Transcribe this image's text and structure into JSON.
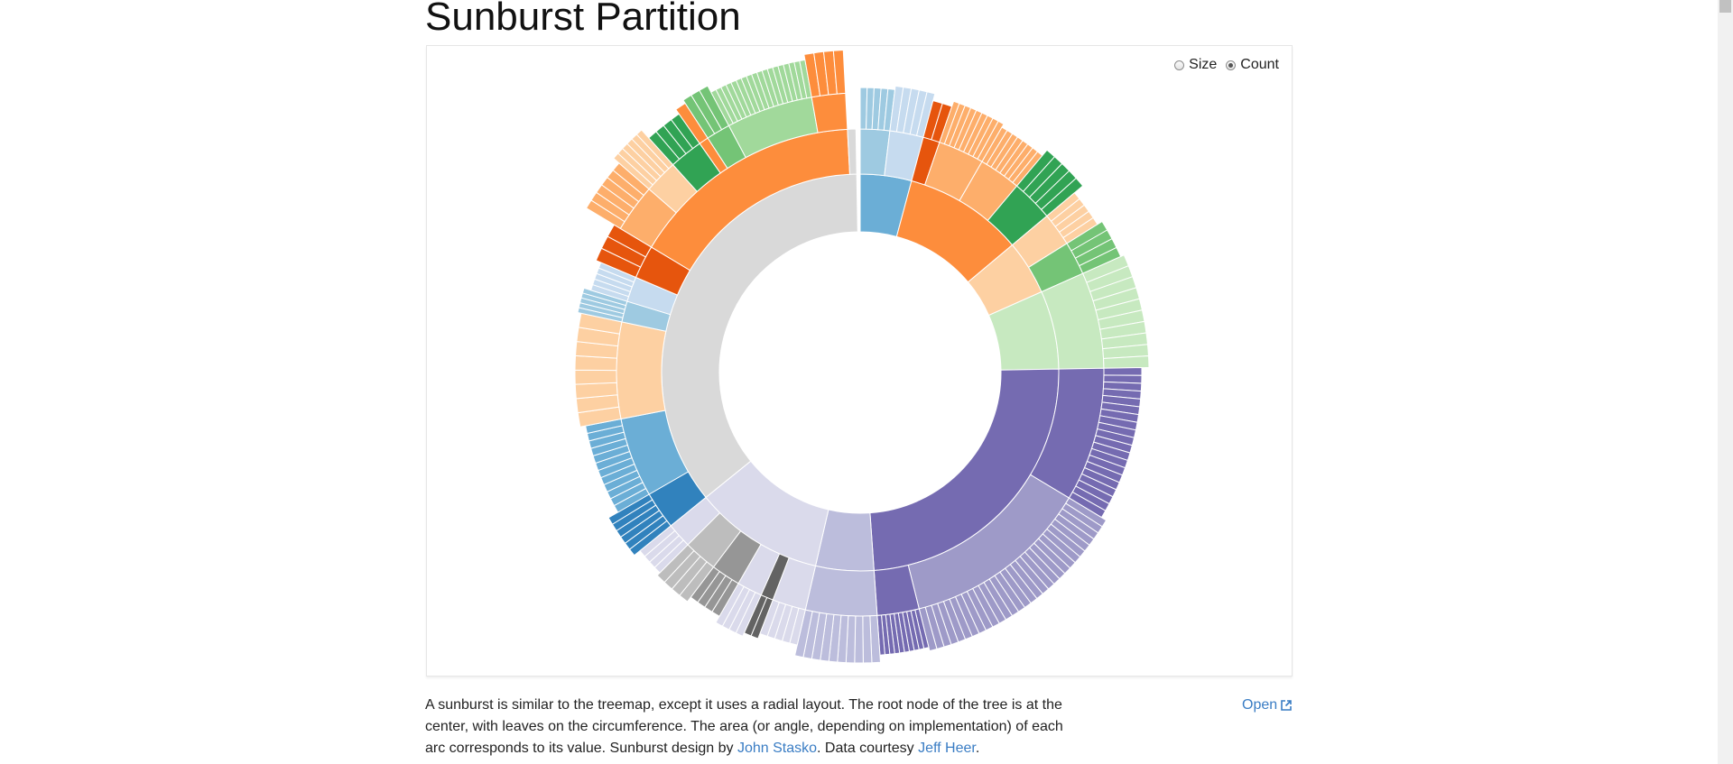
{
  "page": {
    "title": "Sunburst Partition",
    "controls": [
      {
        "label": "Size",
        "checked": false
      },
      {
        "label": "Count",
        "checked": true
      }
    ],
    "caption": {
      "text1": "A sunburst is similar to the treemap, except it uses a radial layout. The root node of the tree is at the center, with leaves on the circumference. The area (or angle, depending on implementation) of each arc corresponds to its value. Sunburst design by ",
      "link1": "John Stasko",
      "text2": ". Data courtesy ",
      "link2": "Jeff Heer",
      "text3": "."
    },
    "open_label": "Open"
  },
  "chart_data": {
    "type": "sunburst",
    "value_mode": "count",
    "title": "",
    "center": "empty",
    "groups": [
      {
        "name": "",
        "color": "#6baed6",
        "start_deg": 0,
        "end_deg": 15,
        "children": [
          {
            "color": "#9ecae1",
            "start_deg": 0,
            "end_deg": 7,
            "leaves": 5
          },
          {
            "color": "#c6dbef",
            "start_deg": 7,
            "end_deg": 15,
            "leaves": 5
          }
        ]
      },
      {
        "name": "",
        "color": "#fd8d3c",
        "start_deg": 15,
        "end_deg": 50,
        "children": [
          {
            "color": "#e6550d",
            "start_deg": 15,
            "end_deg": 19,
            "leaves": 2
          },
          {
            "color": "#fdae6b",
            "start_deg": 19,
            "end_deg": 30,
            "leaves": 9
          },
          {
            "color": "#fdae6b",
            "start_deg": 30,
            "end_deg": 40,
            "leaves": 8
          },
          {
            "color": "#31a354",
            "start_deg": 40,
            "end_deg": 50,
            "leaves": 5
          }
        ]
      },
      {
        "name": "",
        "color": "#fdd0a2",
        "start_deg": 50,
        "end_deg": 66,
        "children": [
          {
            "color": "#fdd0a2",
            "start_deg": 50,
            "end_deg": 58,
            "leaves": 5
          },
          {
            "color": "#74c476",
            "start_deg": 58,
            "end_deg": 66,
            "leaves": 4
          }
        ]
      },
      {
        "name": "",
        "color": "#c7e9c0",
        "start_deg": 66,
        "end_deg": 89,
        "children": [
          {
            "color": "#c7e9c0",
            "start_deg": 66,
            "end_deg": 89,
            "leaves": 10
          }
        ]
      },
      {
        "name": "",
        "color": "#756bb1",
        "start_deg": 89,
        "end_deg": 176,
        "children": [
          {
            "color": "#756bb1",
            "start_deg": 89,
            "end_deg": 121,
            "leaves": 20
          },
          {
            "color": "#9e9ac8",
            "start_deg": 121,
            "end_deg": 166,
            "leaves": 30
          },
          {
            "color": "#756bb1",
            "start_deg": 166,
            "end_deg": 176,
            "leaves": 10
          }
        ]
      },
      {
        "name": "",
        "color": "#bcbddc",
        "start_deg": 176,
        "end_deg": 193,
        "children": [
          {
            "color": "#bcbddc",
            "start_deg": 176,
            "end_deg": 193,
            "leaves": 10
          }
        ]
      },
      {
        "name": "",
        "color": "#dadaeb",
        "start_deg": 193,
        "end_deg": 231,
        "children": [
          {
            "color": "#dadaeb",
            "start_deg": 193,
            "end_deg": 201,
            "leaves": 5
          },
          {
            "color": "#636363",
            "start_deg": 201,
            "end_deg": 204,
            "leaves": 2
          },
          {
            "color": "#dadaeb",
            "start_deg": 204,
            "end_deg": 210,
            "leaves": 4
          },
          {
            "color": "#969696",
            "start_deg": 210,
            "end_deg": 217,
            "leaves": 4
          },
          {
            "color": "#bdbdbd",
            "start_deg": 217,
            "end_deg": 225,
            "leaves": 4
          },
          {
            "color": "#dadaeb",
            "start_deg": 225,
            "end_deg": 231,
            "leaves": 4
          }
        ]
      },
      {
        "name": "",
        "color": "#d9d9d9",
        "start_deg": 231,
        "end_deg": 359,
        "children": [
          {
            "color": "#3182bd",
            "start_deg": 231,
            "end_deg": 240,
            "leaves": 6
          },
          {
            "color": "#6baed6",
            "start_deg": 240,
            "end_deg": 259,
            "leaves": 12
          },
          {
            "color": "#fdd0a2",
            "start_deg": 259,
            "end_deg": 282,
            "leaves": 8
          },
          {
            "color": "#9ecae1",
            "start_deg": 282,
            "end_deg": 287,
            "leaves": 5
          },
          {
            "color": "#c6dbef",
            "start_deg": 287,
            "end_deg": 293,
            "leaves": 5
          },
          {
            "color": "#e6550d",
            "start_deg": 293,
            "end_deg": 301,
            "leaves": 3
          },
          {
            "color": "#fd8d3c",
            "start_deg": 301,
            "end_deg": 357,
            "children_arcs": [
              {
                "color": "#fdae6b",
                "start_deg": 301,
                "end_deg": 311,
                "leaves": 6
              },
              {
                "color": "#fdd0a2",
                "start_deg": 311,
                "end_deg": 318,
                "leaves": 6
              },
              {
                "color": "#31a354",
                "start_deg": 318,
                "end_deg": 325,
                "leaves": 4
              },
              {
                "color": "#fd8d3c",
                "start_deg": 325,
                "end_deg": 327,
                "leaves": 1
              },
              {
                "color": "#74c476",
                "start_deg": 327,
                "end_deg": 332,
                "leaves": 3
              },
              {
                "color": "#a1d99b",
                "start_deg": 332,
                "end_deg": 350,
                "leaves": 18
              },
              {
                "color": "#fd8d3c",
                "start_deg": 350,
                "end_deg": 357,
                "leaves": 4
              }
            ]
          },
          {
            "color": "#d9d9d9",
            "start_deg": 357,
            "end_deg": 359,
            "leaves": 0
          }
        ]
      }
    ]
  }
}
